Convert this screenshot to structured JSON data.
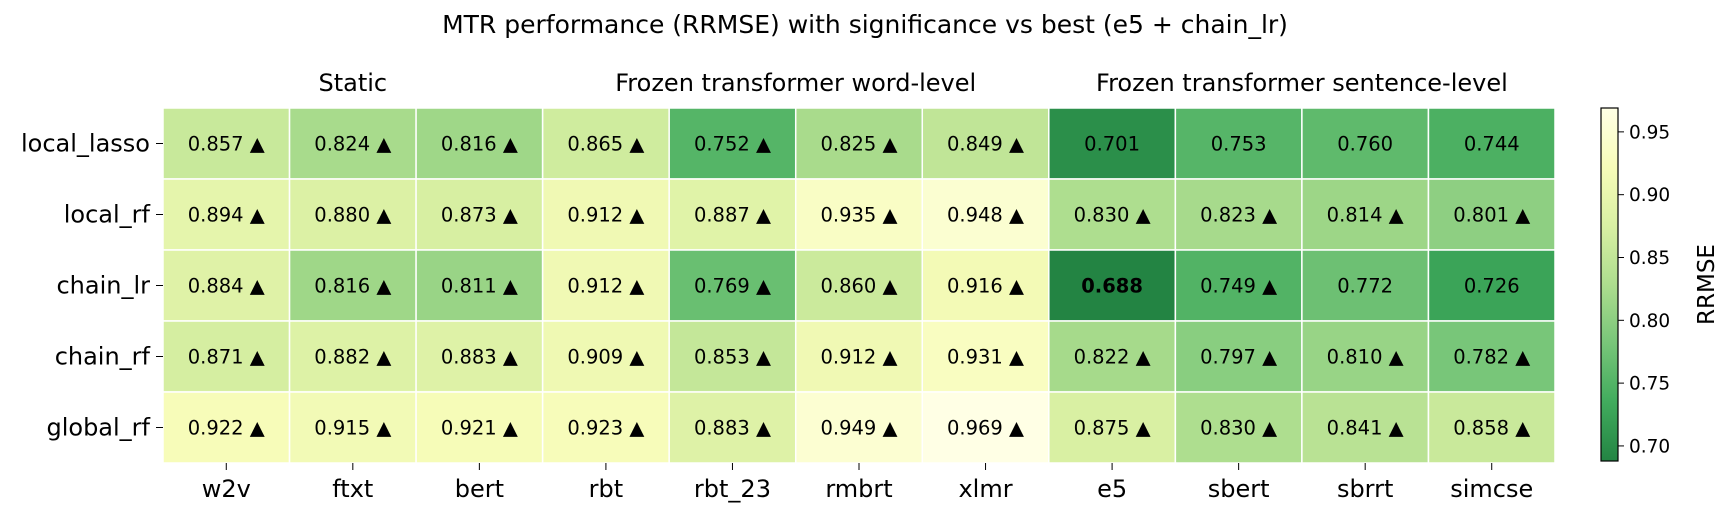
{
  "chart_data": {
    "type": "heatmap",
    "title": "MTR performance (RRMSE) with significance vs best (e5 + chain_lr)",
    "column_groups": [
      {
        "label": "Static",
        "columns": [
          "w2v",
          "ftxt",
          "bert"
        ]
      },
      {
        "label": "Frozen transformer word-level",
        "columns": [
          "rbt",
          "rbt_23",
          "rmbrt",
          "xlmr"
        ]
      },
      {
        "label": "Frozen transformer sentence-level",
        "columns": [
          "e5",
          "sbert",
          "sbrrt",
          "simcse"
        ]
      }
    ],
    "columns": [
      "w2v",
      "ftxt",
      "bert",
      "rbt",
      "rbt_23",
      "rmbrt",
      "xlmr",
      "e5",
      "sbert",
      "sbrrt",
      "simcse"
    ],
    "rows": [
      "local_lasso",
      "local_rf",
      "chain_lr",
      "chain_rf",
      "global_rf"
    ],
    "values": [
      [
        0.857,
        0.824,
        0.816,
        0.865,
        0.752,
        0.825,
        0.849,
        0.701,
        0.753,
        0.76,
        0.744
      ],
      [
        0.894,
        0.88,
        0.873,
        0.912,
        0.887,
        0.935,
        0.948,
        0.83,
        0.823,
        0.814,
        0.801
      ],
      [
        0.884,
        0.816,
        0.811,
        0.912,
        0.769,
        0.86,
        0.916,
        0.688,
        0.749,
        0.772,
        0.726
      ],
      [
        0.871,
        0.882,
        0.883,
        0.909,
        0.853,
        0.912,
        0.931,
        0.822,
        0.797,
        0.81,
        0.782
      ],
      [
        0.922,
        0.915,
        0.921,
        0.923,
        0.883,
        0.949,
        0.969,
        0.875,
        0.83,
        0.841,
        0.858
      ]
    ],
    "cell_labels": [
      [
        "0.857",
        "0.824",
        "0.816",
        "0.865",
        "0.752",
        "0.825",
        "0.849",
        "0.701",
        "0.753",
        "0.760",
        "0.744"
      ],
      [
        "0.894",
        "0.880",
        "0.873",
        "0.912",
        "0.887",
        "0.935",
        "0.948",
        "0.830",
        "0.823",
        "0.814",
        "0.801"
      ],
      [
        "0.884",
        "0.816",
        "0.811",
        "0.912",
        "0.769",
        "0.860",
        "0.916",
        "0.688",
        "0.749",
        "0.772",
        "0.726"
      ],
      [
        "0.871",
        "0.882",
        "0.883",
        "0.909",
        "0.853",
        "0.912",
        "0.931",
        "0.822",
        "0.797",
        "0.810",
        "0.782"
      ],
      [
        "0.922",
        "0.915",
        "0.921",
        "0.923",
        "0.883",
        "0.949",
        "0.969",
        "0.875",
        "0.830",
        "0.841",
        "0.858"
      ]
    ],
    "significance_marker": "▲",
    "significant": [
      [
        true,
        true,
        true,
        true,
        true,
        true,
        true,
        false,
        false,
        false,
        false
      ],
      [
        true,
        true,
        true,
        true,
        true,
        true,
        true,
        true,
        true,
        true,
        true
      ],
      [
        true,
        true,
        true,
        true,
        true,
        true,
        true,
        false,
        true,
        false,
        false
      ],
      [
        true,
        true,
        true,
        true,
        true,
        true,
        true,
        true,
        true,
        true,
        true
      ],
      [
        true,
        true,
        true,
        true,
        true,
        true,
        true,
        true,
        true,
        true,
        true
      ]
    ],
    "best": {
      "row": "chain_lr",
      "column": "e5"
    },
    "colorbar": {
      "label": "RRMSE",
      "range": [
        0.688,
        0.969
      ],
      "ticks": [
        "0.70",
        "0.75",
        "0.80",
        "0.85",
        "0.90",
        "0.95"
      ],
      "colormap": "YlGn_r",
      "colors": [
        "#238443",
        "#41ab5d",
        "#78c679",
        "#addd8e",
        "#d9f0a3",
        "#f7fcb9",
        "#ffffe5"
      ]
    },
    "grid": true
  }
}
